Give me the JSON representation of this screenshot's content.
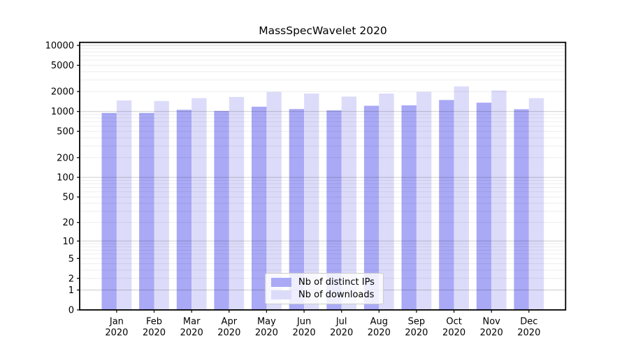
{
  "chart_data": {
    "type": "bar",
    "title": "MassSpecWavelet 2020",
    "xlabel": "",
    "ylabel": "",
    "categories": [
      "Jan 2020",
      "Feb 2020",
      "Mar 2020",
      "Apr 2020",
      "May 2020",
      "Jun 2020",
      "Jul 2020",
      "Aug 2020",
      "Sep 2020",
      "Oct 2020",
      "Nov 2020",
      "Dec 2020"
    ],
    "series": [
      {
        "name": "Nb of distinct IPs",
        "color": "#a9a9f6",
        "values": [
          950,
          950,
          1060,
          1020,
          1180,
          1090,
          1040,
          1220,
          1240,
          1490,
          1360,
          1080
        ]
      },
      {
        "name": "Nb of downloads",
        "color": "#dcdcfa",
        "values": [
          1470,
          1440,
          1590,
          1660,
          1980,
          1870,
          1680,
          1870,
          1980,
          2400,
          2080,
          1590
        ]
      }
    ],
    "yscale": "log1p",
    "yticks": [
      0,
      1,
      2,
      5,
      10,
      20,
      50,
      100,
      200,
      500,
      1000,
      2000,
      5000,
      10000
    ],
    "ylim": [
      0,
      11600
    ],
    "grid": true,
    "grid_position": "above-bars",
    "legend_position": "lower center",
    "frame_color": "#000000",
    "major_grid_color": "#cccccc",
    "minor_grid_color": "#ededed"
  }
}
